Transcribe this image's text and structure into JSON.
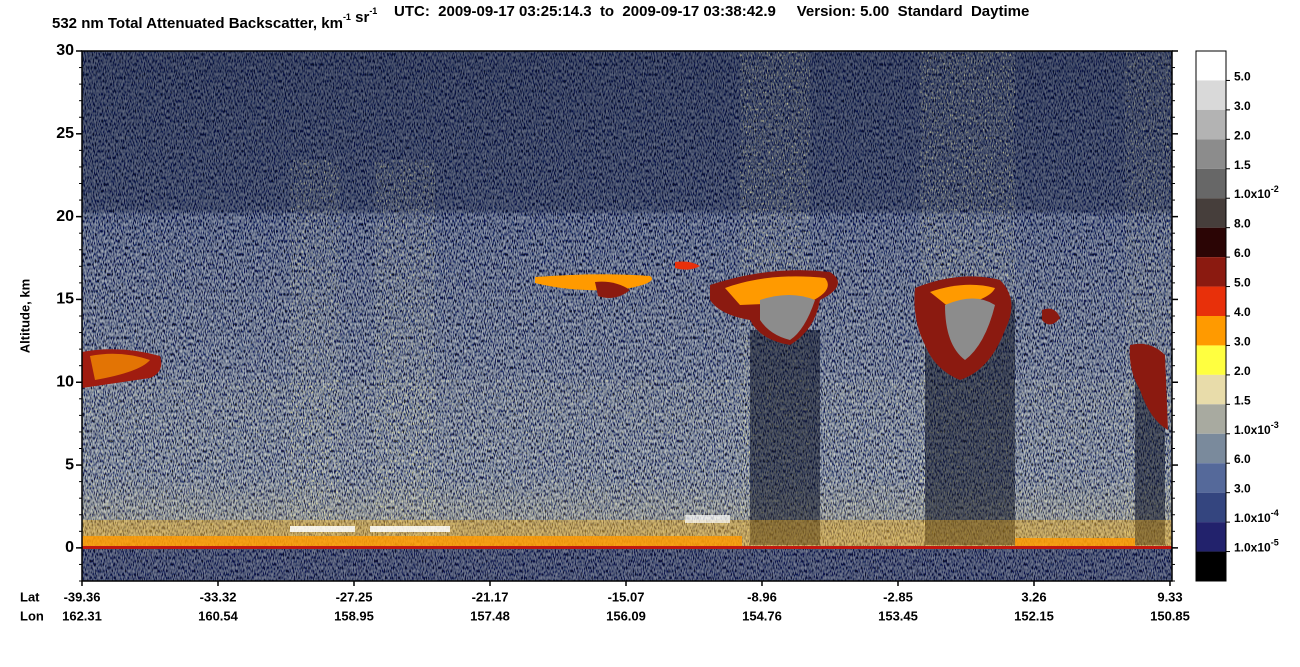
{
  "chart_data": {
    "type": "heatmap",
    "title": [
      {
        "text": "532 nm Total Attenuated Backscatter, km",
        "sup": "-1"
      },
      {
        "text": " sr",
        "sup": "-1"
      },
      {
        "text": "    UTC:  2009-09-17 03:25:14.3  to  2009-09-17 03:38:42.9     Version: 5.00  Standard  Daytime"
      }
    ],
    "y_label": "Altitude, km",
    "ylim": [
      -2,
      30
    ],
    "yticks": [
      0,
      5,
      10,
      15,
      20,
      25,
      30
    ],
    "x_rows": [
      {
        "name": "Lat",
        "values": [
          -39.36,
          -33.32,
          -27.25,
          -21.17,
          -15.07,
          -8.96,
          -2.85,
          3.26,
          9.33
        ]
      },
      {
        "name": "Lon",
        "values": [
          162.31,
          160.54,
          158.95,
          157.48,
          156.09,
          154.76,
          153.45,
          152.15,
          150.85
        ]
      }
    ],
    "colorbar": {
      "colors": [
        "#ffffff",
        "#d9d9d9",
        "#b3b3b3",
        "#8c8c8c",
        "#676767",
        "#463e3b",
        "#2b0505",
        "#8b1a10",
        "#e8300a",
        "#ff9a00",
        "#ffff40",
        "#e8dcaa",
        "#a8aaa0",
        "#7a8a9c",
        "#55699a",
        "#34457f",
        "#22226c",
        "#000000"
      ],
      "labels": [
        {
          "text": "5.0"
        },
        {
          "text": "3.0"
        },
        {
          "text": "2.0"
        },
        {
          "text": "1.5"
        },
        {
          "text": "1.0x10",
          "sup": "-2"
        },
        {
          "text": "8.0"
        },
        {
          "text": "6.0"
        },
        {
          "text": "5.0"
        },
        {
          "text": "4.0"
        },
        {
          "text": "3.0"
        },
        {
          "text": "2.0"
        },
        {
          "text": "1.5"
        },
        {
          "text": "1.0x10",
          "sup": "-3"
        },
        {
          "text": "6.0"
        },
        {
          "text": "3.0"
        },
        {
          "text": "1.0x10",
          "sup": "-4"
        },
        {
          "text": "1.0x10",
          "sup": "-5"
        }
      ]
    }
  }
}
